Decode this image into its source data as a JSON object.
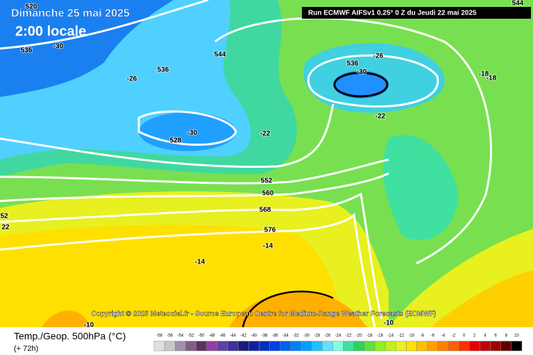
{
  "header": {
    "date": "Dimanche 25 mai 2025",
    "time": "2:00 locale",
    "run": "Run ECMWF AIFSv1 0.25° 0 Z du Jeudi 22 mai 2025"
  },
  "map": {
    "copyright": "Copyright © 2025 Meteociel.fr - Source European Centre for Medium-Range Weather Forecasts (ECMWF)",
    "labels": [
      "520",
      "536",
      "-30",
      "544",
      "536",
      "-26",
      "-30",
      "528",
      "-22",
      "536",
      "-26",
      "-30",
      "-22",
      "-18",
      "-18",
      "552",
      "560",
      "568",
      "576",
      "-14",
      "-14",
      "-10",
      "-10",
      "52",
      "22",
      "544"
    ]
  },
  "legend": {
    "title": "Temp./Geop. 500hPa (°C)",
    "lead": "(+ 72h)",
    "scale": [
      -58,
      -56,
      -54,
      -52,
      -50,
      -48,
      -46,
      -44,
      -42,
      -40,
      -38,
      -36,
      -34,
      -32,
      -30,
      -28,
      -26,
      -24,
      -22,
      -20,
      -18,
      -16,
      -14,
      -12,
      -10,
      -8,
      -6,
      -4,
      -2,
      0,
      2,
      4,
      6,
      8,
      10
    ],
    "colors": [
      "#e0e0e0",
      "#c8c8c8",
      "#a090a8",
      "#806080",
      "#603060",
      "#9040a0",
      "#6040a0",
      "#4030a0",
      "#201880",
      "#1020a0",
      "#0030c0",
      "#0040e0",
      "#0060f0",
      "#0080ff",
      "#00a0ff",
      "#20c0ff",
      "#60e0ff",
      "#80ffe0",
      "#40e0a0",
      "#30d060",
      "#60e040",
      "#90f020",
      "#c0f020",
      "#e8f020",
      "#ffe000",
      "#ffc000",
      "#ffa000",
      "#ff8000",
      "#ff6000",
      "#ff3000",
      "#e00000",
      "#c00000",
      "#a00000",
      "#600000",
      "#000000"
    ]
  }
}
